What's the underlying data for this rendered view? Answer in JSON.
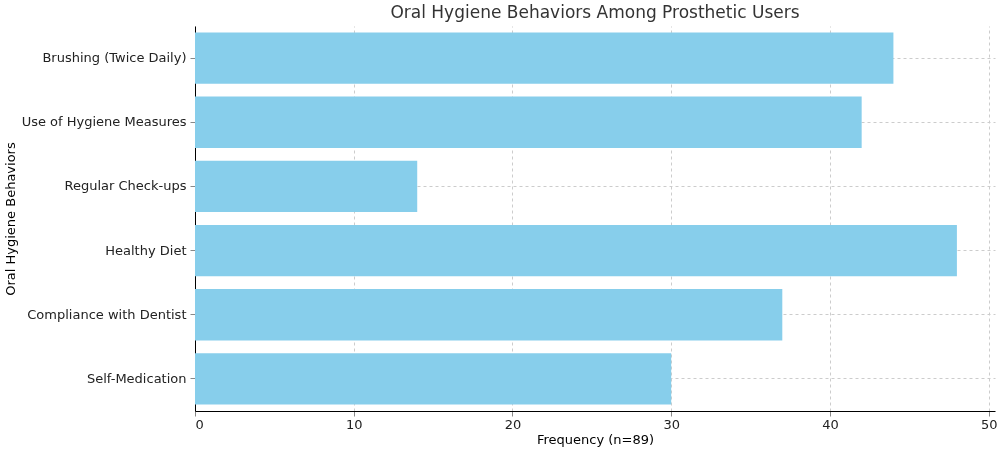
{
  "chart_data": {
    "type": "bar",
    "orientation": "horizontal",
    "title": "Oral Hygiene Behaviors Among Prosthetic Users",
    "xlabel": "Frequency (n=89)",
    "ylabel": "Oral Hygiene Behaviors",
    "categories": [
      "Brushing (Twice Daily)",
      "Use of Hygiene Measures",
      "Regular Check-ups",
      "Healthy Diet",
      "Compliance with Dentist",
      "Self-Medication"
    ],
    "values": [
      44,
      42,
      14,
      48,
      37,
      30
    ],
    "color": "#87ceeb",
    "xlim": [
      0,
      50.4
    ],
    "xticks": [
      0,
      10,
      20,
      30,
      40,
      50
    ],
    "grid": true
  }
}
